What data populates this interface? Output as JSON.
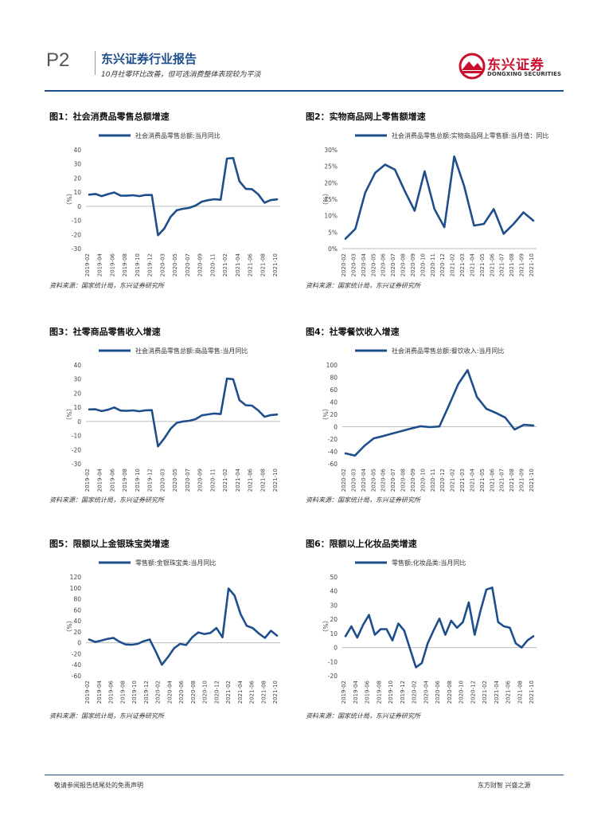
{
  "header": {
    "page_label": "P2",
    "report_title": "东兴证券行业报告",
    "subtitle": "10月社零环比改善，但可选消费整体表现较为平淡",
    "logo_cn": "东兴证券",
    "logo_en": "DONGXING SECURITIES"
  },
  "colors": {
    "brand_blue": "#1f4e8c",
    "line": "#1f4e8c",
    "logo_red": "#c8102e"
  },
  "footer": {
    "left": "敬请参阅报告结尾处的免责声明",
    "right": "东方财智 兴盛之源"
  },
  "source_text": "资料来源：国家统计局，东兴证券研究所",
  "chart_data": [
    {
      "type": "line",
      "title": "图1：社会消费品零售总额增速",
      "legend": "社会消费品零售总额:当月同比",
      "ylabel": "（%）",
      "ylim": [
        -30,
        40
      ],
      "yticks": [
        "40",
        "30",
        "20",
        "10",
        "0",
        "-10",
        "-20",
        "-30"
      ],
      "x_tick_labels": [
        "2019-02",
        "2019-04",
        "2019-06",
        "2019-08",
        "2019-10",
        "2019-12",
        "2020-03",
        "2020-05",
        "2020-07",
        "2020-09",
        "2020-11",
        "2021-02",
        "2021-04",
        "2021-06",
        "2021-08",
        "2021-10"
      ],
      "values": [
        8.2,
        8.7,
        7.2,
        8.6,
        9.8,
        7.6,
        7.5,
        7.8,
        7.2,
        8.0,
        8.0,
        -20.5,
        -15.8,
        -7.5,
        -2.8,
        -1.8,
        -1.1,
        0.5,
        3.3,
        4.3,
        5.0,
        4.6,
        33.8,
        34.2,
        17.7,
        12.4,
        12.1,
        8.5,
        2.5,
        4.4,
        4.9
      ]
    },
    {
      "type": "line",
      "title": "图2：实物商品网上零售额增速",
      "legend": "社会消费品零售总额:实物商品网上零售额:当月值：同比",
      "ylabel": "（%）",
      "ylim": [
        0,
        30
      ],
      "yticks": [
        "30%",
        "25%",
        "20%",
        "15%",
        "10%",
        "5%",
        "0%"
      ],
      "x_tick_labels": [
        "2020-02",
        "2020-03",
        "2020-04",
        "2020-05",
        "2020-06",
        "2020-07",
        "2020-08",
        "2020-09",
        "2020-10",
        "2020-11",
        "2020-12",
        "2021-02",
        "2021-03",
        "2021-04",
        "2021-05",
        "2021-06",
        "2021-07",
        "2021-08",
        "2021-09",
        "2021-10"
      ],
      "values": [
        3.0,
        6.0,
        17.0,
        23.0,
        25.5,
        24.0,
        17.5,
        11.5,
        23.5,
        12.0,
        6.5,
        28.0,
        19.0,
        7.0,
        7.5,
        12.0,
        4.5,
        7.5,
        11.0,
        8.5
      ]
    },
    {
      "type": "line",
      "title": "图3：社零商品零售收入增速",
      "legend": "社会消费品零售总额:商品零售:当月同比",
      "ylabel": "（%）",
      "ylim": [
        -30,
        40
      ],
      "yticks": [
        "40",
        "30",
        "20",
        "10",
        "0",
        "-10",
        "-20",
        "-30"
      ],
      "x_tick_labels": [
        "2019-02",
        "2019-04",
        "2019-06",
        "2019-08",
        "2019-10",
        "2019-12",
        "2020-03",
        "2020-05",
        "2020-07",
        "2020-09",
        "2020-11",
        "2021-02",
        "2021-04",
        "2021-06",
        "2021-08",
        "2021-10"
      ],
      "values": [
        8.5,
        8.6,
        7.3,
        8.3,
        9.9,
        7.7,
        7.5,
        7.8,
        7.2,
        7.9,
        8.0,
        -17.7,
        -12.0,
        -5.2,
        -1.0,
        0.0,
        0.5,
        1.6,
        4.3,
        5.0,
        5.6,
        5.2,
        30.4,
        29.9,
        15.1,
        11.5,
        11.2,
        7.8,
        3.3,
        4.5,
        4.9
      ]
    },
    {
      "type": "line",
      "title": "图4：社零餐饮收入增速",
      "legend": "社会消费品零售总额:餐饮收入:当月同比",
      "ylabel": "（%）",
      "ylim": [
        -60,
        100
      ],
      "yticks": [
        "100",
        "80",
        "60",
        "40",
        "20",
        "0",
        "-20",
        "-40",
        "-60"
      ],
      "x_tick_labels": [
        "2020-02",
        "2020-03",
        "2020-04",
        "2020-05",
        "2020-06",
        "2020-07",
        "2020-08",
        "2020-09",
        "2020-10",
        "2020-11",
        "2020-12",
        "2021-02",
        "2021-03",
        "2021-04",
        "2021-05",
        "2021-06",
        "2021-07",
        "2021-08",
        "2021-09",
        "2021-10"
      ],
      "values": [
        -43.1,
        -46.8,
        -31.1,
        -18.9,
        -15.2,
        -11.0,
        -7.0,
        -2.9,
        0.8,
        -0.6,
        0.4,
        34.0,
        69.0,
        91.6,
        48.0,
        29.0,
        22.5,
        15.0,
        -4.5,
        3.1,
        2.0
      ]
    },
    {
      "type": "line",
      "title": "图5：限额以上金银珠宝类增速",
      "legend": "零售额:金银珠宝类:当月同比",
      "ylabel": "（%）",
      "ylim": [
        -60,
        120
      ],
      "yticks": [
        "120",
        "100",
        "80",
        "60",
        "40",
        "20",
        "0",
        "-20",
        "-40",
        "-60"
      ],
      "x_tick_labels": [
        "2019-02",
        "2019-04",
        "2019-06",
        "2019-08",
        "2019-10",
        "2019-12",
        "2020-02",
        "2020-04",
        "2020-06",
        "2020-08",
        "2020-10",
        "2020-12",
        "2021-02",
        "2021-04",
        "2021-06",
        "2021-08",
        "2021-10"
      ],
      "values": [
        6.0,
        1.5,
        4.0,
        7.0,
        9.0,
        2.0,
        -3.0,
        -3.5,
        -2.0,
        3.0,
        6.0,
        -16.0,
        -40.0,
        -26.0,
        -10.0,
        -2.0,
        -4.0,
        10.0,
        19.0,
        16.0,
        18.0,
        27.0,
        10.0,
        99.0,
        86.0,
        52.0,
        31.0,
        27.0,
        17.0,
        9.0,
        22.0,
        13.0
      ]
    },
    {
      "type": "line",
      "title": "图6：限额以上化妆品类增速",
      "legend": "零售额:化妆品类:当月同比",
      "ylabel": "（%）",
      "ylim": [
        -20,
        50
      ],
      "yticks": [
        "50",
        "40",
        "30",
        "20",
        "10",
        "0",
        "-10",
        "-20"
      ],
      "x_tick_labels": [
        "2019-02",
        "2019-04",
        "2019-06",
        "2019-08",
        "2019-10",
        "2019-12",
        "2020-02",
        "2020-04",
        "2020-06",
        "2020-08",
        "2020-10",
        "2020-12",
        "2021-02",
        "2021-04",
        "2021-06",
        "2021-08",
        "2021-10"
      ],
      "values": [
        8.0,
        15.0,
        7.0,
        16.0,
        23.0,
        9.0,
        13.0,
        13.0,
        5.0,
        17.0,
        12.0,
        -1.0,
        -14.0,
        -11.0,
        3.0,
        12.0,
        20.5,
        9.0,
        19.0,
        14.0,
        18.0,
        32.0,
        9.0,
        26.0,
        41.0,
        42.5,
        18.0,
        15.0,
        14.0,
        3.0,
        0.0,
        5.0,
        8.0
      ]
    }
  ]
}
